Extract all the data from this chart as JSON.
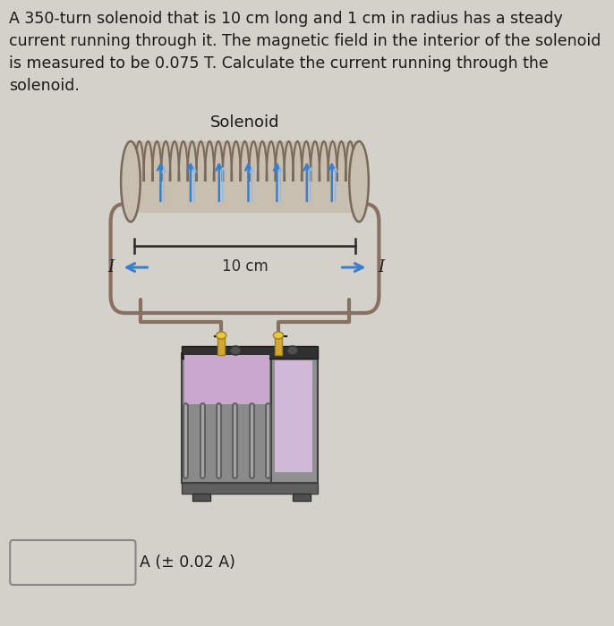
{
  "background_color": "#d4d0ca",
  "title_text": "A 350-turn solenoid that is 10 cm long and 1 cm in radius has a steady\ncurrent running through it. The magnetic field in the interior of the solenoid\nis measured to be 0.075 T. Calculate the current running through the\nsolenoid.",
  "solenoid_label": "Solenoid",
  "length_label": "10 cm",
  "current_label": "I",
  "answer_label": "A (± 0.02 A)",
  "text_color": "#1a1a1a",
  "coil_fill": "#c8bfb0",
  "coil_line": "#7a6a5a",
  "wire_color": "#8a7060",
  "wire_green": "#6a9060",
  "arrow_color": "#3a7fcc",
  "dim_color": "#2a2a2a",
  "batt_front_dark": "#909090",
  "batt_front_light": "#b0b0b0",
  "batt_rib_dark": "#686868",
  "batt_top_dark": "#2a2a2a",
  "batt_top_purple": "#c0a0c0",
  "batt_side_gray": "#a0a0a0",
  "batt_side_purple": "#c8b0cc",
  "batt_terminal": "#d4a830",
  "batt_edge": "#404040",
  "plus_color": "#1a1a1a",
  "minus_color": "#1a1a1a"
}
